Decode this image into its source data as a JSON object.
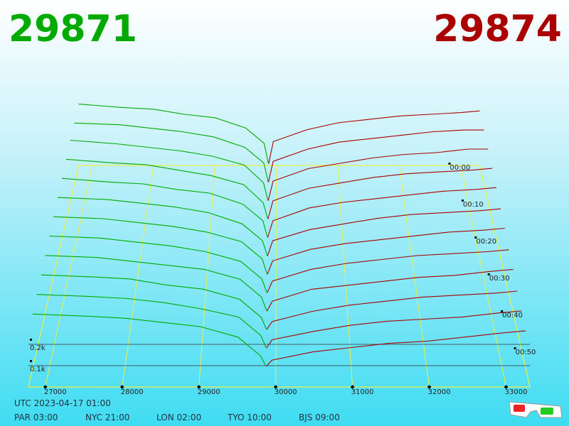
{
  "chart_data": {
    "type": "depth3d",
    "best_bid": 29871,
    "best_ask": 29874,
    "bid_color": "#00aa00",
    "ask_color": "#aa0000",
    "bid_x": [
      26780,
      27500,
      28000,
      28500,
      29000,
      29500,
      29800,
      29871
    ],
    "ask_x": [
      29874,
      29950,
      30500,
      31000,
      31500,
      32000,
      32500,
      33000,
      33310
    ],
    "snapshots": [
      {
        "t": 0,
        "bids": [
          0.36,
          0.34,
          0.33,
          0.3,
          0.28,
          0.22,
          0.13,
          0.01
        ],
        "asks": [
          0.01,
          0.14,
          0.21,
          0.25,
          0.27,
          0.29,
          0.3,
          0.31,
          0.32
        ]
      },
      {
        "t": 5,
        "bids": [
          0.35,
          0.34,
          0.32,
          0.3,
          0.27,
          0.21,
          0.12,
          0.01
        ],
        "asks": [
          0.01,
          0.13,
          0.2,
          0.24,
          0.26,
          0.28,
          0.3,
          0.31,
          0.31
        ]
      },
      {
        "t": 10,
        "bids": [
          0.35,
          0.33,
          0.31,
          0.29,
          0.26,
          0.21,
          0.11,
          0.01
        ],
        "asks": [
          0.01,
          0.12,
          0.19,
          0.22,
          0.25,
          0.27,
          0.28,
          0.3,
          0.3
        ]
      },
      {
        "t": 15,
        "bids": [
          0.34,
          0.32,
          0.31,
          0.28,
          0.25,
          0.2,
          0.1,
          0.01
        ],
        "asks": [
          0.01,
          0.11,
          0.18,
          0.21,
          0.24,
          0.26,
          0.27,
          0.28,
          0.29
        ]
      },
      {
        "t": 20,
        "bids": [
          0.33,
          0.31,
          0.3,
          0.27,
          0.25,
          0.19,
          0.1,
          0.01
        ],
        "asks": [
          0.01,
          0.1,
          0.17,
          0.2,
          0.22,
          0.24,
          0.26,
          0.27,
          0.28
        ]
      },
      {
        "t": 25,
        "bids": [
          0.32,
          0.31,
          0.29,
          0.27,
          0.24,
          0.18,
          0.09,
          0.01
        ],
        "asks": [
          0.01,
          0.09,
          0.15,
          0.18,
          0.21,
          0.23,
          0.24,
          0.25,
          0.26
        ]
      },
      {
        "t": 30,
        "bids": [
          0.31,
          0.3,
          0.28,
          0.26,
          0.23,
          0.18,
          0.09,
          0.01
        ],
        "asks": [
          0.01,
          0.08,
          0.14,
          0.17,
          0.19,
          0.21,
          0.23,
          0.24,
          0.25
        ]
      },
      {
        "t": 35,
        "bids": [
          0.3,
          0.29,
          0.27,
          0.25,
          0.22,
          0.17,
          0.08,
          0.01
        ],
        "asks": [
          0.01,
          0.07,
          0.13,
          0.16,
          0.18,
          0.2,
          0.21,
          0.22,
          0.23
        ]
      },
      {
        "t": 40,
        "bids": [
          0.29,
          0.28,
          0.26,
          0.24,
          0.22,
          0.17,
          0.08,
          0.01
        ],
        "asks": [
          0.01,
          0.06,
          0.12,
          0.14,
          0.16,
          0.18,
          0.19,
          0.21,
          0.22
        ]
      },
      {
        "t": 45,
        "bids": [
          0.28,
          0.27,
          0.26,
          0.23,
          0.21,
          0.16,
          0.07,
          0.01
        ],
        "asks": [
          0.01,
          0.05,
          0.1,
          0.13,
          0.15,
          0.17,
          0.18,
          0.19,
          0.2
        ]
      },
      {
        "t": 50,
        "bids": [
          0.27,
          0.26,
          0.25,
          0.23,
          0.2,
          0.16,
          0.07,
          0.01
        ],
        "asks": [
          0.01,
          0.05,
          0.09,
          0.12,
          0.14,
          0.15,
          0.16,
          0.18,
          0.19
        ]
      },
      {
        "t": 55,
        "bids": [
          0.26,
          0.25,
          0.24,
          0.22,
          0.2,
          0.15,
          0.06,
          0.01
        ],
        "asks": [
          0.01,
          0.04,
          0.08,
          0.1,
          0.12,
          0.13,
          0.15,
          0.17,
          0.18
        ]
      }
    ],
    "xlim": [
      26780,
      33310
    ],
    "xticks": [
      27000,
      28000,
      29000,
      30000,
      31000,
      32000,
      33000
    ],
    "ylim": [
      0,
      0.4
    ],
    "yticks": [
      {
        "value": 0.1,
        "label": "0.1k"
      },
      {
        "value": 0.2,
        "label": "0.2k"
      }
    ],
    "zlim": [
      0,
      60
    ],
    "zticks": [
      {
        "value": 0,
        "label": "00:00"
      },
      {
        "value": 10,
        "label": "00:10"
      },
      {
        "value": 20,
        "label": "00:20"
      },
      {
        "value": 30,
        "label": "00:30"
      },
      {
        "value": 40,
        "label": "00:40"
      },
      {
        "value": 50,
        "label": "00:50"
      }
    ],
    "floor_color": "#eeee44"
  },
  "footer": {
    "utc": "UTC 2023-04-17 01:00",
    "cities": [
      "PAR 03:00",
      "NYC 21:00",
      "LON 02:00",
      "TYO 10:00",
      "BJS 09:00"
    ]
  }
}
